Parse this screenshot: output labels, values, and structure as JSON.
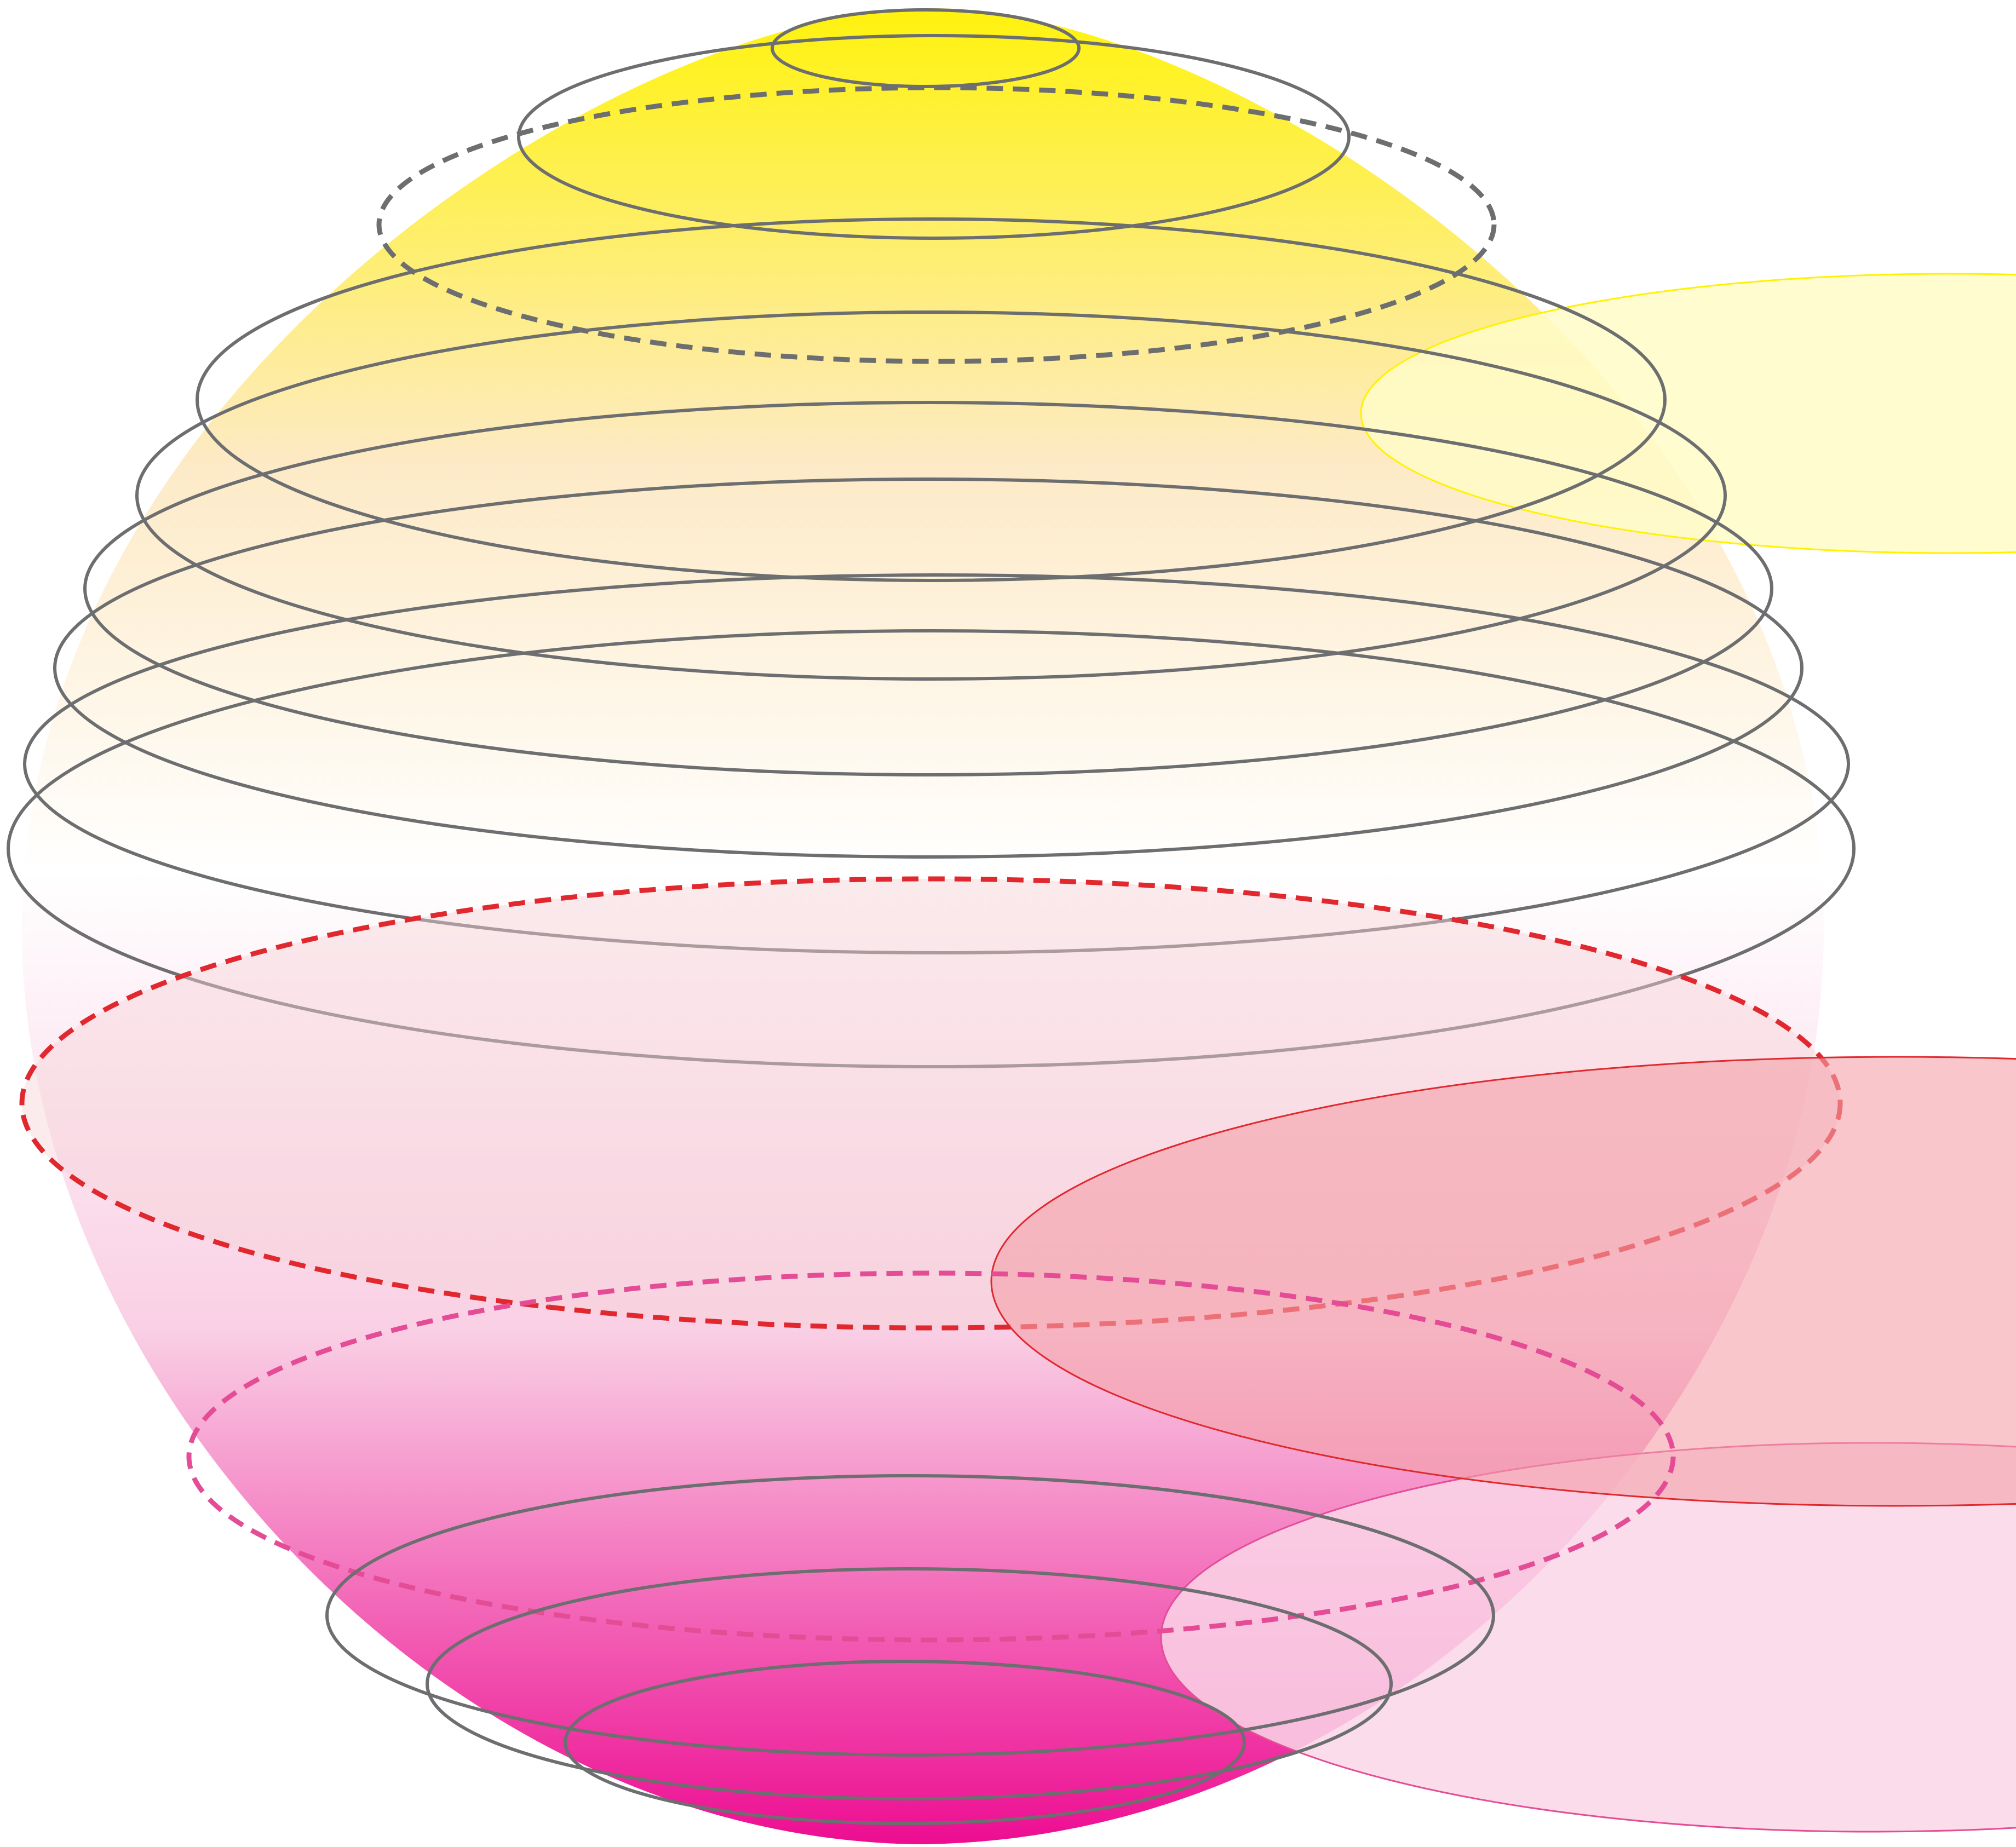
{
  "diagram": {
    "description_free": true,
    "colors": {
      "top": "#fff200",
      "upper": "#fde9c4",
      "middle": "#ffffff",
      "lower": "#f9cde3",
      "bottom": "#ec008c",
      "ring_stroke": "#6d6e70",
      "equator_dashed": "#e0282e",
      "lower_dashed": "#e44d96",
      "yellow_disc_fill": "#fffbc8",
      "yellow_disc_stroke": "#fff200",
      "red_disc_fill": "#f4a0a8",
      "red_disc_stroke": "#e0282e",
      "pink_disc_fill": "#fad6e8",
      "pink_disc_stroke": "#e44d96"
    },
    "rings": {
      "solid_count": 10,
      "dashed_count": 3
    }
  }
}
